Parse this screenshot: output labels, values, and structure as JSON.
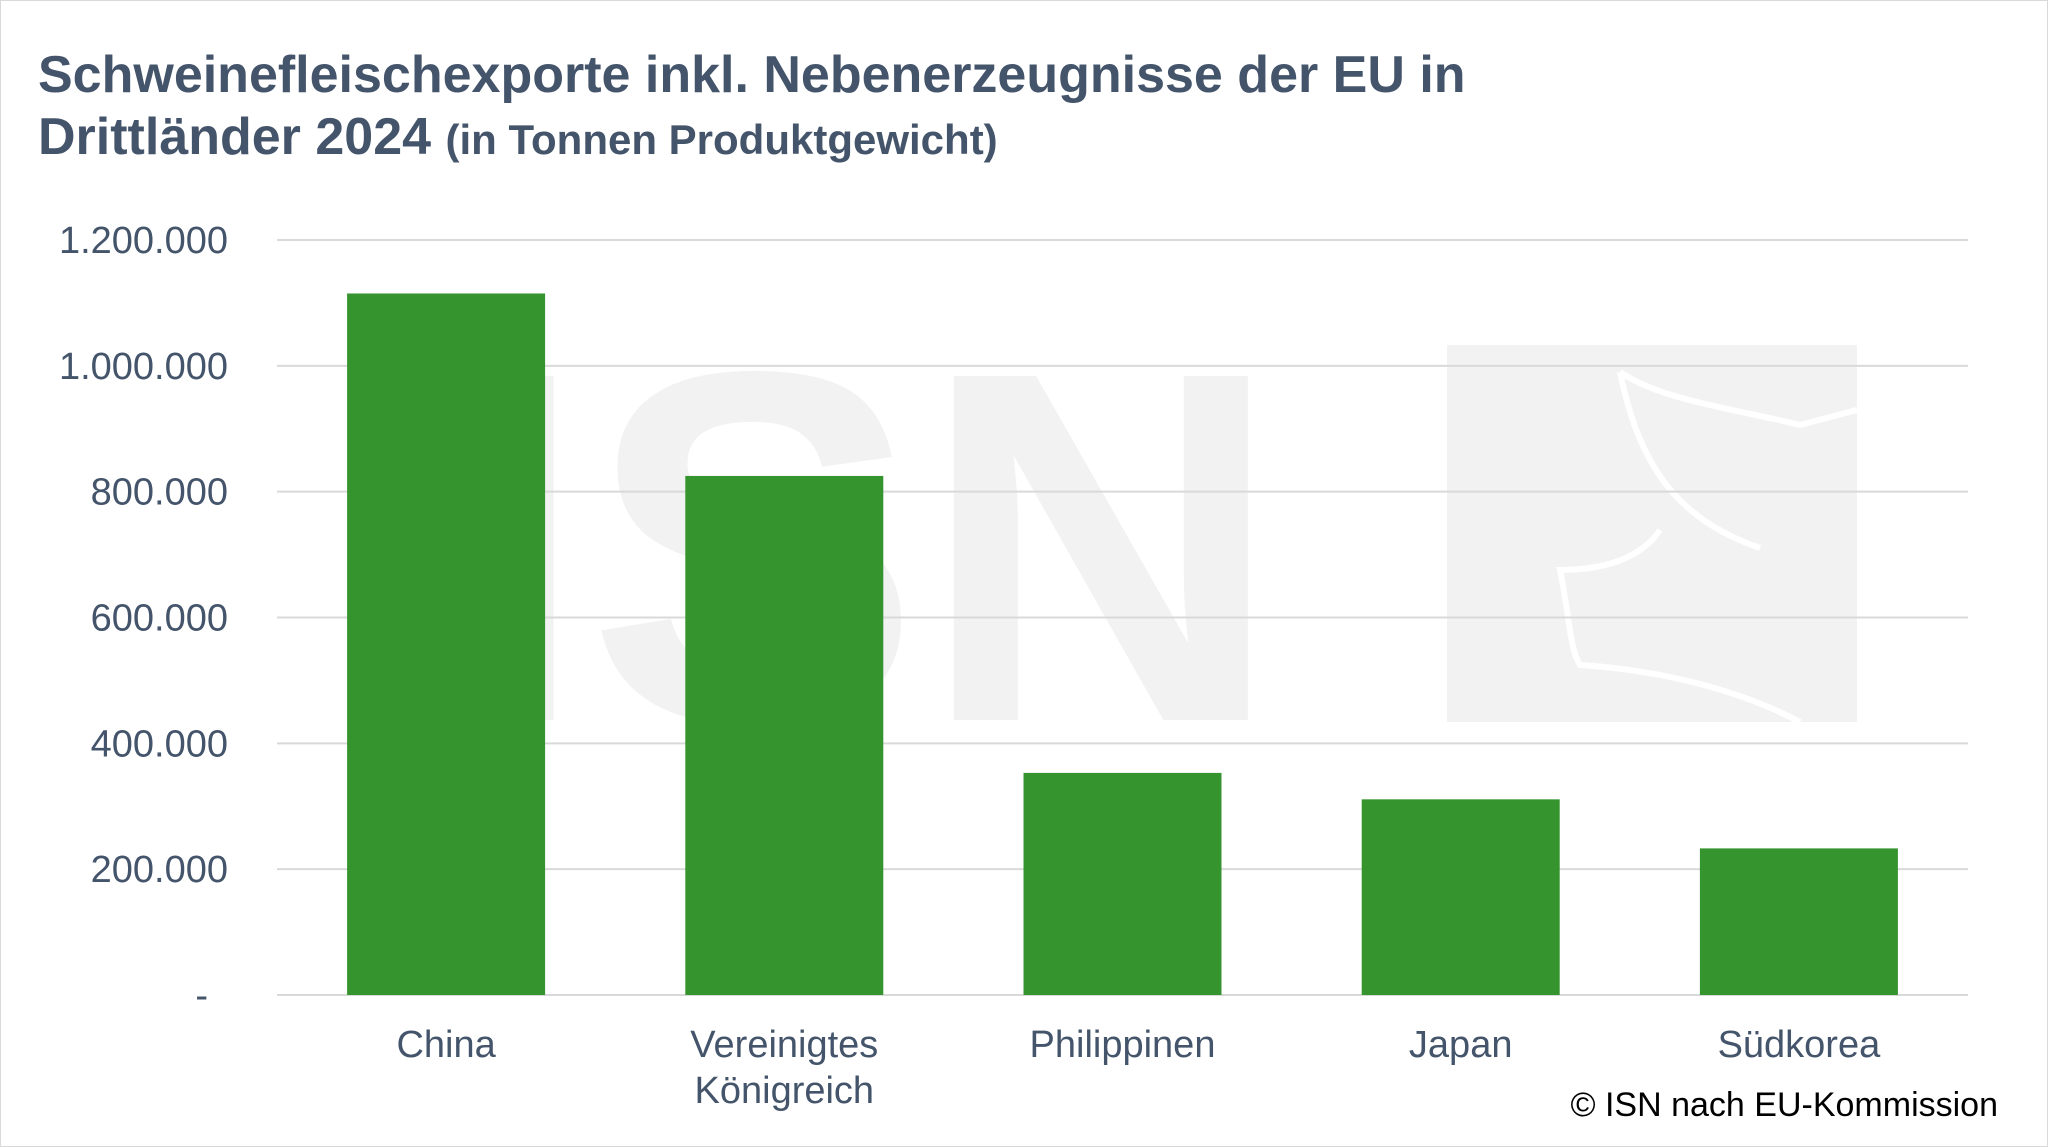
{
  "title": "Schweinefleischexporte inkl. Nebenerzeugnisse der EU in Drittländer 2024",
  "subtitle": "(in Tonnen Produktgewicht)",
  "credit": "© ISN nach EU-Kommission",
  "watermark": "ISN",
  "colors": {
    "bar": "#33922c",
    "title": "#44546a",
    "grid": "#d9d9d9",
    "axis_text": "#44546a",
    "watermark": "#f2f2f2"
  },
  "chart_data": {
    "type": "bar",
    "title": "Schweinefleischexporte inkl. Nebenerzeugnisse der EU in Drittländer 2024 (in Tonnen Produktgewicht)",
    "categories": [
      [
        "China"
      ],
      [
        "Vereinigtes",
        "Königreich"
      ],
      [
        "Philippinen"
      ],
      [
        "Japan"
      ],
      [
        "Südkorea"
      ]
    ],
    "values": [
      1115000,
      825000,
      353000,
      311000,
      233000
    ],
    "ylim": [
      0,
      1200000
    ],
    "yticks": [
      {
        "value": 0,
        "label": "-"
      },
      {
        "value": 200000,
        "label": "200.000"
      },
      {
        "value": 400000,
        "label": "400.000"
      },
      {
        "value": 600000,
        "label": "600.000"
      },
      {
        "value": 800000,
        "label": "800.000"
      },
      {
        "value": 1000000,
        "label": "1.000.000"
      },
      {
        "value": 1200000,
        "label": "1.200.000"
      }
    ],
    "grid": true,
    "legend": "none"
  }
}
